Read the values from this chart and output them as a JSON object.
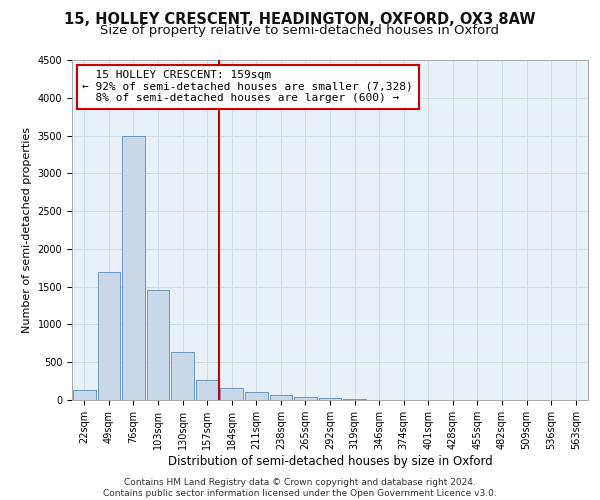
{
  "title_line1": "15, HOLLEY CRESCENT, HEADINGTON, OXFORD, OX3 8AW",
  "title_line2": "Size of property relative to semi-detached houses in Oxford",
  "xlabel": "Distribution of semi-detached houses by size in Oxford",
  "ylabel": "Number of semi-detached properties",
  "footnote": "Contains HM Land Registry data © Crown copyright and database right 2024.\nContains public sector information licensed under the Open Government Licence v3.0.",
  "bar_labels": [
    "22sqm",
    "49sqm",
    "76sqm",
    "103sqm",
    "130sqm",
    "157sqm",
    "184sqm",
    "211sqm",
    "238sqm",
    "265sqm",
    "292sqm",
    "319sqm",
    "346sqm",
    "374sqm",
    "401sqm",
    "428sqm",
    "455sqm",
    "482sqm",
    "509sqm",
    "536sqm",
    "563sqm"
  ],
  "bar_values": [
    130,
    1700,
    3500,
    1450,
    630,
    260,
    155,
    100,
    65,
    40,
    20,
    10,
    5,
    2,
    0,
    0,
    0,
    0,
    0,
    0,
    0
  ],
  "bar_color": "#c8d8e8",
  "bar_edgecolor": "#5b8db8",
  "vline_color": "#cc0000",
  "annotation_box_color": "#cc0000",
  "property_label": "15 HOLLEY CRESCENT: 159sqm",
  "pct_smaller": 92,
  "n_smaller": 7328,
  "pct_larger": 8,
  "n_larger": 600,
  "ylim": [
    0,
    4500
  ],
  "grid_color": "#d0dce8",
  "background_color": "#e8f0f8",
  "title_fontsize": 10.5,
  "subtitle_fontsize": 9.5,
  "annotation_fontsize": 8,
  "xlabel_fontsize": 8.5,
  "ylabel_fontsize": 8,
  "tick_fontsize": 7,
  "footnote_fontsize": 6.5
}
